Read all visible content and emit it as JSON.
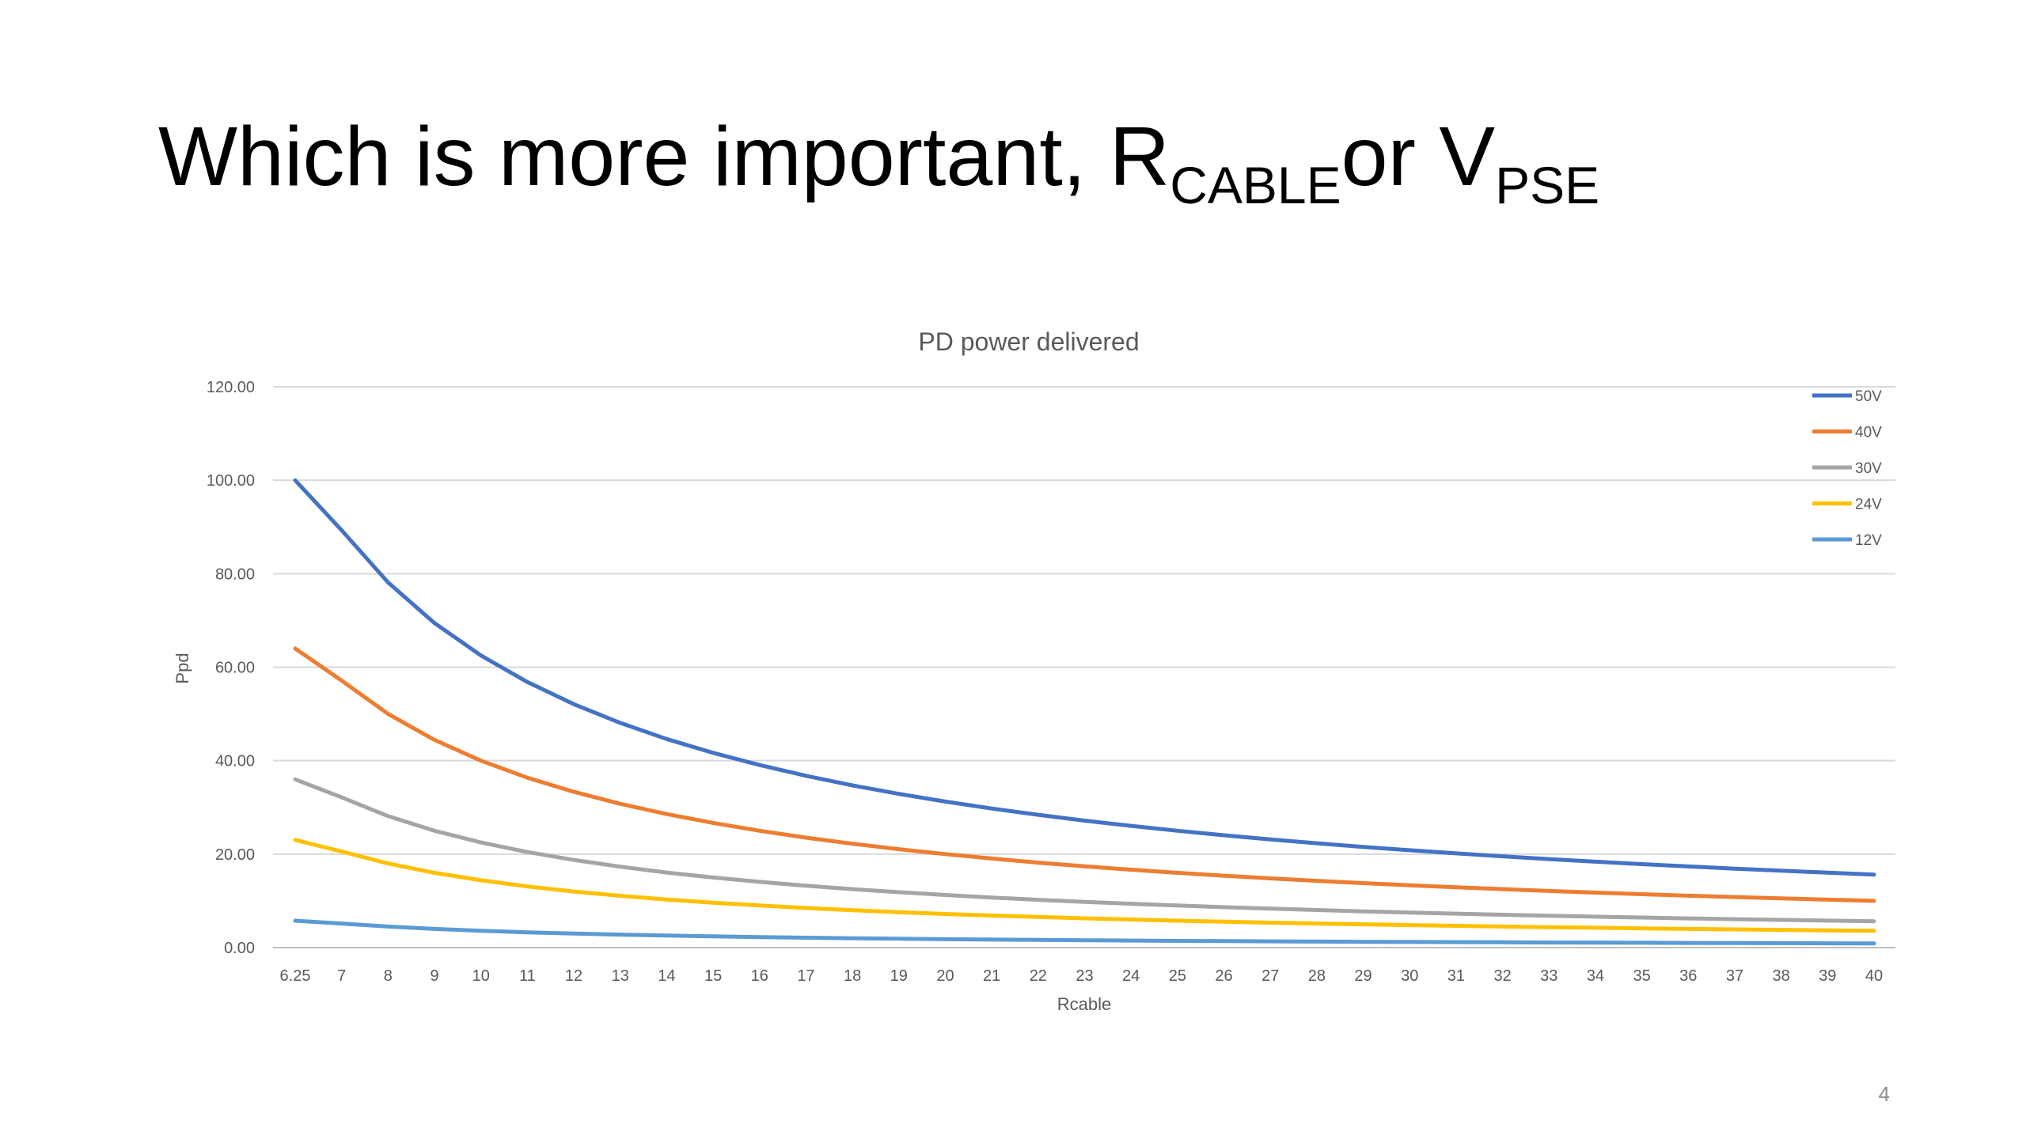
{
  "slide": {
    "title_main": "Which is more important, R",
    "title_sub1": "CABLE",
    "title_mid": "or V",
    "title_sub2": "PSE",
    "page_number": "4"
  },
  "chart_data": {
    "type": "line",
    "title": "PD power delivered",
    "xlabel": "Rcable",
    "ylabel": "Ppd",
    "ylim": [
      0,
      120
    ],
    "y_ticks": [
      "0.00",
      "20.00",
      "40.00",
      "60.00",
      "80.00",
      "100.00",
      "120.00"
    ],
    "grid": true,
    "legend_position": "top-right",
    "categories": [
      "6.25",
      "7",
      "8",
      "9",
      "10",
      "11",
      "12",
      "13",
      "14",
      "15",
      "16",
      "17",
      "18",
      "19",
      "20",
      "21",
      "22",
      "23",
      "24",
      "25",
      "26",
      "27",
      "28",
      "29",
      "30",
      "31",
      "32",
      "33",
      "34",
      "35",
      "36",
      "37",
      "38",
      "39",
      "40"
    ],
    "series": [
      {
        "name": "50V",
        "color": "#4472C4",
        "values": [
          100.0,
          89.29,
          78.13,
          69.44,
          62.5,
          56.82,
          52.08,
          48.08,
          44.64,
          41.67,
          39.06,
          36.76,
          34.72,
          32.89,
          31.25,
          29.76,
          28.41,
          27.17,
          26.04,
          25.0,
          24.04,
          23.15,
          22.32,
          21.55,
          20.83,
          20.16,
          19.53,
          18.94,
          18.38,
          17.86,
          17.36,
          16.89,
          16.45,
          16.03,
          15.63
        ]
      },
      {
        "name": "40V",
        "color": "#ED7D31",
        "values": [
          64.0,
          57.14,
          50.0,
          44.44,
          40.0,
          36.36,
          33.33,
          30.77,
          28.57,
          26.67,
          25.0,
          23.53,
          22.22,
          21.05,
          20.0,
          19.05,
          18.18,
          17.39,
          16.67,
          16.0,
          15.38,
          14.81,
          14.29,
          13.79,
          13.33,
          12.9,
          12.5,
          12.12,
          11.76,
          11.43,
          11.11,
          10.81,
          10.53,
          10.26,
          10.0
        ]
      },
      {
        "name": "30V",
        "color": "#A5A5A5",
        "values": [
          36.0,
          32.14,
          28.13,
          25.0,
          22.5,
          20.45,
          18.75,
          17.31,
          16.07,
          15.0,
          14.06,
          13.24,
          12.5,
          11.84,
          11.25,
          10.71,
          10.23,
          9.78,
          9.38,
          9.0,
          8.65,
          8.33,
          8.04,
          7.76,
          7.5,
          7.26,
          7.03,
          6.82,
          6.62,
          6.43,
          6.25,
          6.08,
          5.92,
          5.77,
          5.63
        ]
      },
      {
        "name": "24V",
        "color": "#FFC000",
        "values": [
          23.04,
          20.57,
          18.0,
          16.0,
          14.4,
          13.09,
          12.0,
          11.08,
          10.29,
          9.6,
          9.0,
          8.47,
          8.0,
          7.58,
          7.2,
          6.86,
          6.55,
          6.26,
          6.0,
          5.76,
          5.54,
          5.33,
          5.14,
          4.97,
          4.8,
          4.65,
          4.5,
          4.36,
          4.24,
          4.11,
          4.0,
          3.89,
          3.79,
          3.69,
          3.6
        ]
      },
      {
        "name": "12V",
        "color": "#5B9BD5",
        "values": [
          5.76,
          5.14,
          4.5,
          4.0,
          3.6,
          3.27,
          3.0,
          2.77,
          2.57,
          2.4,
          2.25,
          2.12,
          2.0,
          1.89,
          1.8,
          1.71,
          1.64,
          1.57,
          1.5,
          1.44,
          1.38,
          1.33,
          1.29,
          1.24,
          1.2,
          1.16,
          1.13,
          1.09,
          1.06,
          1.03,
          1.0,
          0.97,
          0.95,
          0.92,
          0.9
        ]
      }
    ]
  }
}
